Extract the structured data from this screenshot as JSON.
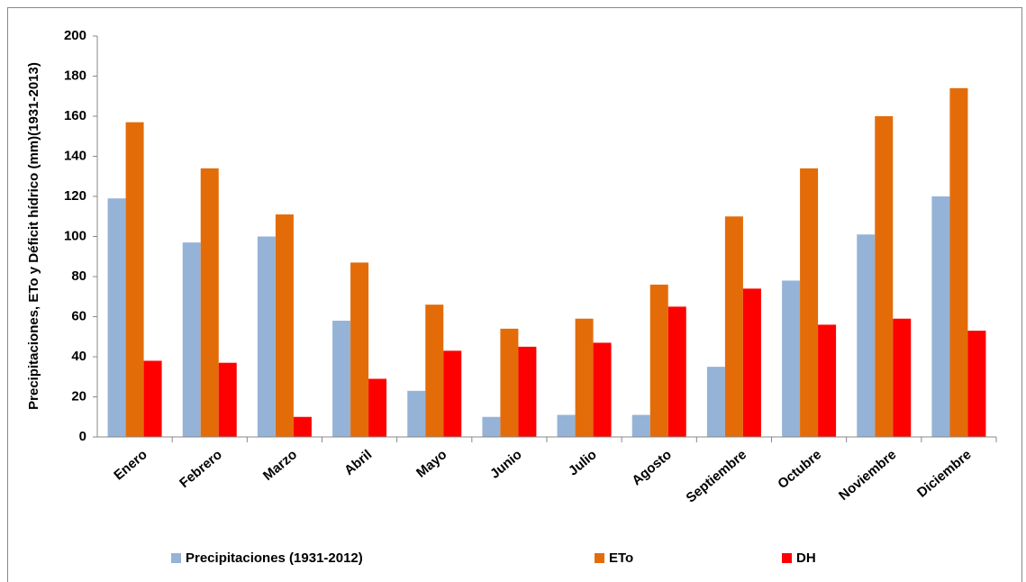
{
  "chart_data": {
    "type": "bar",
    "y_label": "Precipitaciones, ETo y Déficit hídrico  (mm)(1931-2013)",
    "categories": [
      "Enero",
      "Febrero",
      "Marzo",
      "Abril",
      "Mayo",
      "Junio",
      "Julio",
      "Agosto",
      "Septiembre",
      "Octubre",
      "Noviembre",
      "Diciembre"
    ],
    "series": [
      {
        "name": "Precipitaciones (1931-2012)",
        "color": "#95b3d7",
        "values": [
          119,
          97,
          100,
          58,
          23,
          10,
          11,
          11,
          35,
          78,
          101,
          120
        ]
      },
      {
        "name": "ETo",
        "color": "#e36c09",
        "values": [
          157,
          134,
          111,
          87,
          66,
          54,
          59,
          76,
          110,
          134,
          160,
          174
        ]
      },
      {
        "name": "DH",
        "color": "#ff0000",
        "values": [
          38,
          37,
          10,
          29,
          43,
          45,
          47,
          65,
          74,
          56,
          59,
          53
        ]
      }
    ],
    "ylim": [
      0,
      200
    ],
    "yticks": [
      0,
      20,
      40,
      60,
      80,
      100,
      120,
      140,
      160,
      180,
      200
    ],
    "grid": false,
    "legend": "bottom"
  }
}
